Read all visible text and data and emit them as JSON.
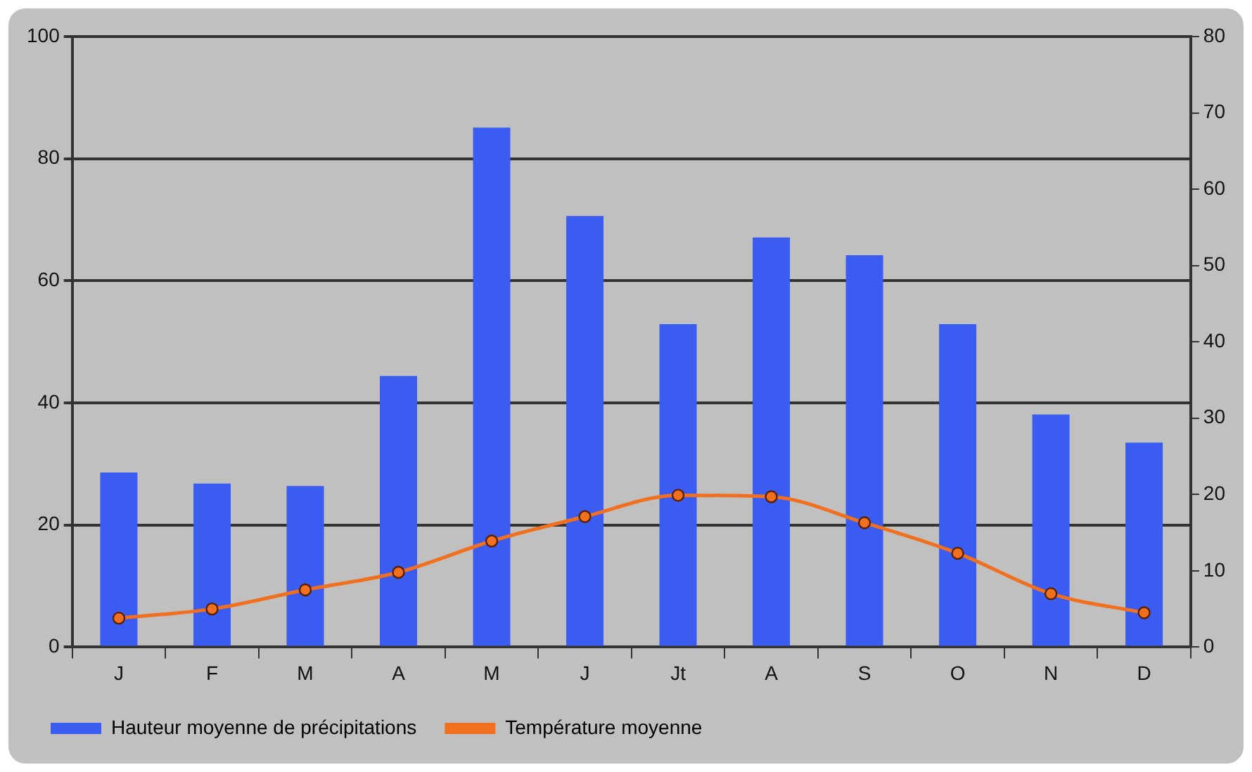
{
  "chart_data": {
    "type": "bar",
    "categories": [
      "J",
      "F",
      "M",
      "A",
      "M",
      "J",
      "Jt",
      "A",
      "S",
      "O",
      "N",
      "D"
    ],
    "series": [
      {
        "name": "Hauteur moyenne de précipitations",
        "color": "#3a5cf0",
        "values": [
          28.6,
          26.8,
          26.4,
          44.4,
          85.1,
          70.6,
          52.9,
          67.1,
          64.2,
          52.9,
          38.1,
          33.5
        ]
      },
      {
        "name": "Température moyenne",
        "type": "line",
        "axis": "y2",
        "color": "#f07020",
        "values": [
          3.8,
          5.0,
          7.5,
          9.8,
          13.9,
          17.1,
          19.9,
          19.7,
          16.3,
          12.3,
          7.0,
          4.5
        ]
      }
    ],
    "ylim": [
      0,
      100
    ],
    "yticks": [
      0,
      20,
      40,
      60,
      80,
      100
    ],
    "y2lim": [
      0,
      80
    ],
    "y2ticks": [
      0,
      10,
      20,
      30,
      40,
      50,
      60,
      70,
      80
    ],
    "grid": "y",
    "legend": "bottom",
    "marker": "circle"
  }
}
